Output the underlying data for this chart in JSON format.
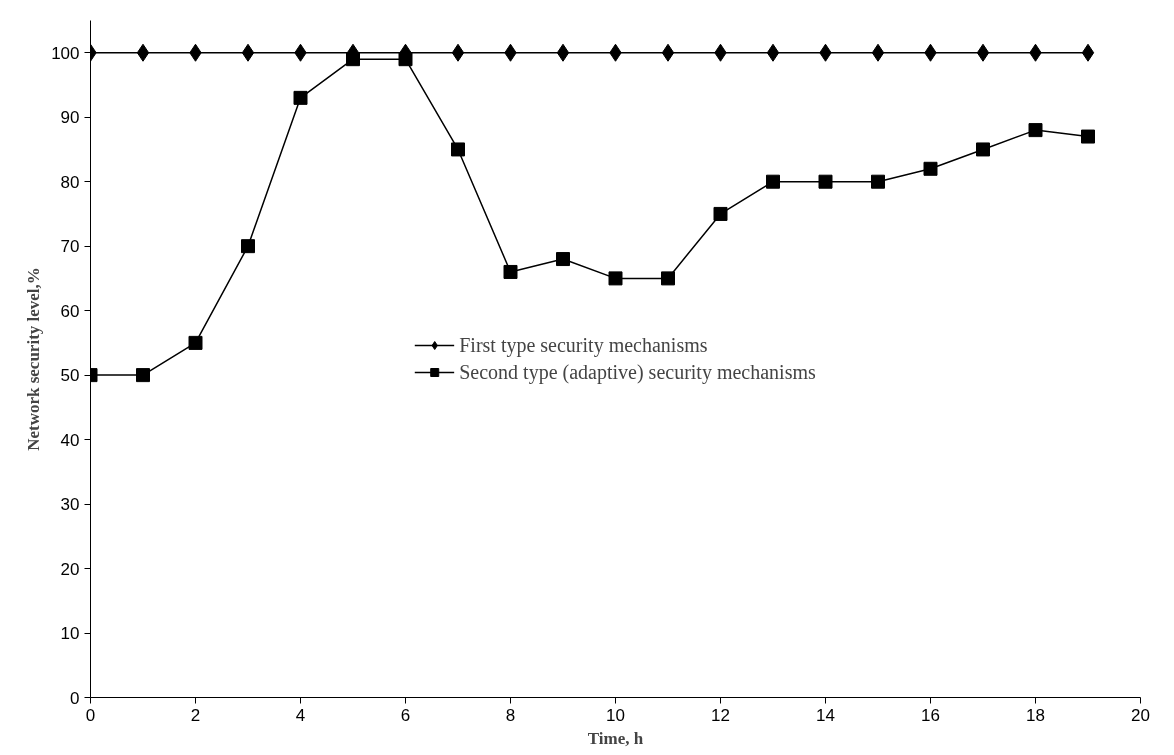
{
  "chart_data": {
    "type": "line",
    "xlabel": "Time, h",
    "ylabel": "Network security level,%",
    "x": [
      0,
      1,
      2,
      3,
      4,
      5,
      6,
      7,
      8,
      9,
      10,
      11,
      12,
      13,
      14,
      15,
      16,
      17,
      18,
      19
    ],
    "series": [
      {
        "name": "First type security mechanisms",
        "color": "#000000",
        "marker": "diamond",
        "values": [
          100,
          100,
          100,
          100,
          100,
          100,
          100,
          100,
          100,
          100,
          100,
          100,
          100,
          100,
          100,
          100,
          100,
          100,
          100,
          100
        ]
      },
      {
        "name": "Second type (adaptive) security mechanisms",
        "color": "#000000",
        "marker": "square",
        "values": [
          50,
          50,
          55,
          70,
          93,
          99,
          99,
          85,
          66,
          68,
          65,
          65,
          75,
          80,
          80,
          80,
          82,
          85,
          88,
          87
        ]
      }
    ],
    "xlim": [
      0,
      20
    ],
    "xticks": [
      0,
      2,
      4,
      6,
      8,
      10,
      12,
      14,
      16,
      18,
      20
    ],
    "ylim": [
      0,
      105
    ],
    "yticks": [
      0,
      10,
      20,
      30,
      40,
      50,
      60,
      70,
      80,
      90,
      100
    ],
    "grid": false,
    "legend": "center",
    "line_style": "solid"
  }
}
